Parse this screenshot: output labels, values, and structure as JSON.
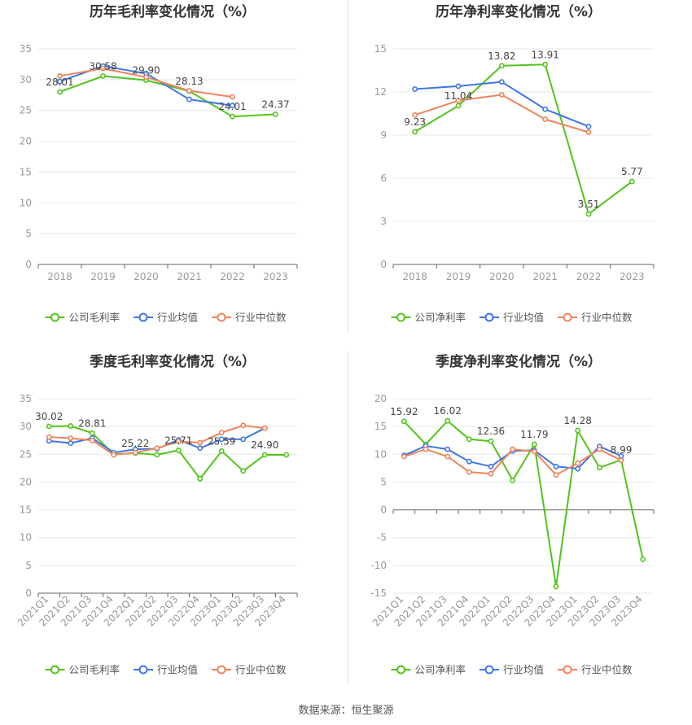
{
  "source_label": "数据来源：恒生聚源",
  "colors": {
    "company": "#52c41a",
    "industry_avg": "#3e76e6",
    "industry_median": "#f0845a",
    "grid": "#e8e8e8",
    "axis_text": "#999999"
  },
  "chart_data": [
    {
      "type": "line",
      "title": "历年毛利率变化情况（%）",
      "categories": [
        "2018",
        "2019",
        "2020",
        "2021",
        "2022",
        "2023"
      ],
      "ylim": [
        0,
        35
      ],
      "yticks": [
        0,
        5,
        10,
        15,
        20,
        25,
        30,
        35
      ],
      "rotate_x": false,
      "legend": [
        "公司毛利率",
        "行业均值",
        "行业中位数"
      ],
      "series": [
        {
          "name": "公司毛利率",
          "values": [
            28.01,
            30.58,
            29.9,
            28.13,
            24.01,
            24.37
          ],
          "labels": [
            "28.01",
            "30.58",
            "29.90",
            "28.13",
            "24.01",
            "24.37"
          ]
        },
        {
          "name": "行业均值",
          "values": [
            29.7,
            32.2,
            31.0,
            26.8,
            25.8,
            null
          ]
        },
        {
          "name": "行业中位数",
          "values": [
            30.6,
            31.8,
            30.4,
            28.2,
            27.2,
            null
          ]
        }
      ]
    },
    {
      "type": "line",
      "title": "历年净利率变化情况（%）",
      "categories": [
        "2018",
        "2019",
        "2020",
        "2021",
        "2022",
        "2023"
      ],
      "ylim": [
        0,
        15
      ],
      "yticks": [
        0,
        3,
        6,
        9,
        12,
        15
      ],
      "rotate_x": false,
      "legend": [
        "公司净利率",
        "行业均值",
        "行业中位数"
      ],
      "series": [
        {
          "name": "公司净利率",
          "values": [
            9.23,
            11.04,
            13.82,
            13.91,
            3.51,
            5.77
          ],
          "labels": [
            "9.23",
            "11.04",
            "13.82",
            "13.91",
            "3.51",
            "5.77"
          ]
        },
        {
          "name": "行业均值",
          "values": [
            12.2,
            12.4,
            12.7,
            10.8,
            9.6,
            null
          ]
        },
        {
          "name": "行业中位数",
          "values": [
            10.4,
            11.4,
            11.8,
            10.1,
            9.2,
            null
          ]
        }
      ]
    },
    {
      "type": "line",
      "title": "季度毛利率变化情况（%）",
      "categories": [
        "2021Q1",
        "2021Q2",
        "2021Q3",
        "2021Q4",
        "2022Q1",
        "2022Q2",
        "2022Q3",
        "2022Q4",
        "2023Q1",
        "2023Q2",
        "2023Q3",
        "2023Q4"
      ],
      "ylim": [
        0,
        35
      ],
      "yticks": [
        0,
        5,
        10,
        15,
        20,
        25,
        30,
        35
      ],
      "rotate_x": true,
      "legend": [
        "公司毛利率",
        "行业均值",
        "行业中位数"
      ],
      "series": [
        {
          "name": "公司毛利率",
          "values": [
            30.02,
            30.1,
            28.81,
            25.0,
            25.22,
            24.9,
            25.71,
            20.6,
            25.59,
            22.0,
            24.9,
            24.9
          ],
          "labels": [
            "30.02",
            "",
            "28.81",
            "",
            "25.22",
            "",
            "25.71",
            "",
            "25.59",
            "",
            "24.90",
            ""
          ]
        },
        {
          "name": "行业均值",
          "values": [
            27.4,
            27.0,
            27.9,
            25.3,
            25.9,
            26.0,
            27.6,
            26.1,
            27.7,
            27.7,
            29.7,
            null
          ]
        },
        {
          "name": "行业中位数",
          "values": [
            28.1,
            27.9,
            27.5,
            24.9,
            25.3,
            26.1,
            27.3,
            27.1,
            28.9,
            30.2,
            29.7,
            null
          ]
        }
      ]
    },
    {
      "type": "line",
      "title": "季度净利率变化情况（%）",
      "categories": [
        "2021Q1",
        "2021Q2",
        "2021Q3",
        "2021Q4",
        "2022Q1",
        "2022Q2",
        "2022Q3",
        "2022Q4",
        "2023Q1",
        "2023Q2",
        "2023Q3",
        "2023Q4"
      ],
      "ylim": [
        -15,
        20
      ],
      "yticks": [
        -15,
        -10,
        -5,
        0,
        5,
        10,
        15,
        20
      ],
      "rotate_x": true,
      "legend": [
        "公司净利率",
        "行业均值",
        "行业中位数"
      ],
      "series": [
        {
          "name": "公司净利率",
          "values": [
            15.92,
            11.8,
            16.02,
            12.7,
            12.36,
            5.3,
            11.79,
            -13.8,
            14.28,
            7.6,
            8.99,
            -8.9
          ],
          "labels": [
            "15.92",
            "",
            "16.02",
            "",
            "12.36",
            "",
            "11.79",
            "",
            "14.28",
            "",
            "8.99",
            ""
          ]
        },
        {
          "name": "行业均值",
          "values": [
            9.8,
            11.5,
            10.9,
            8.7,
            7.8,
            10.6,
            10.7,
            7.8,
            7.4,
            11.4,
            9.7,
            null
          ]
        },
        {
          "name": "行业中位数",
          "values": [
            9.6,
            10.9,
            9.6,
            6.8,
            6.5,
            10.9,
            10.5,
            6.3,
            8.4,
            10.9,
            8.9,
            null
          ]
        }
      ]
    }
  ]
}
